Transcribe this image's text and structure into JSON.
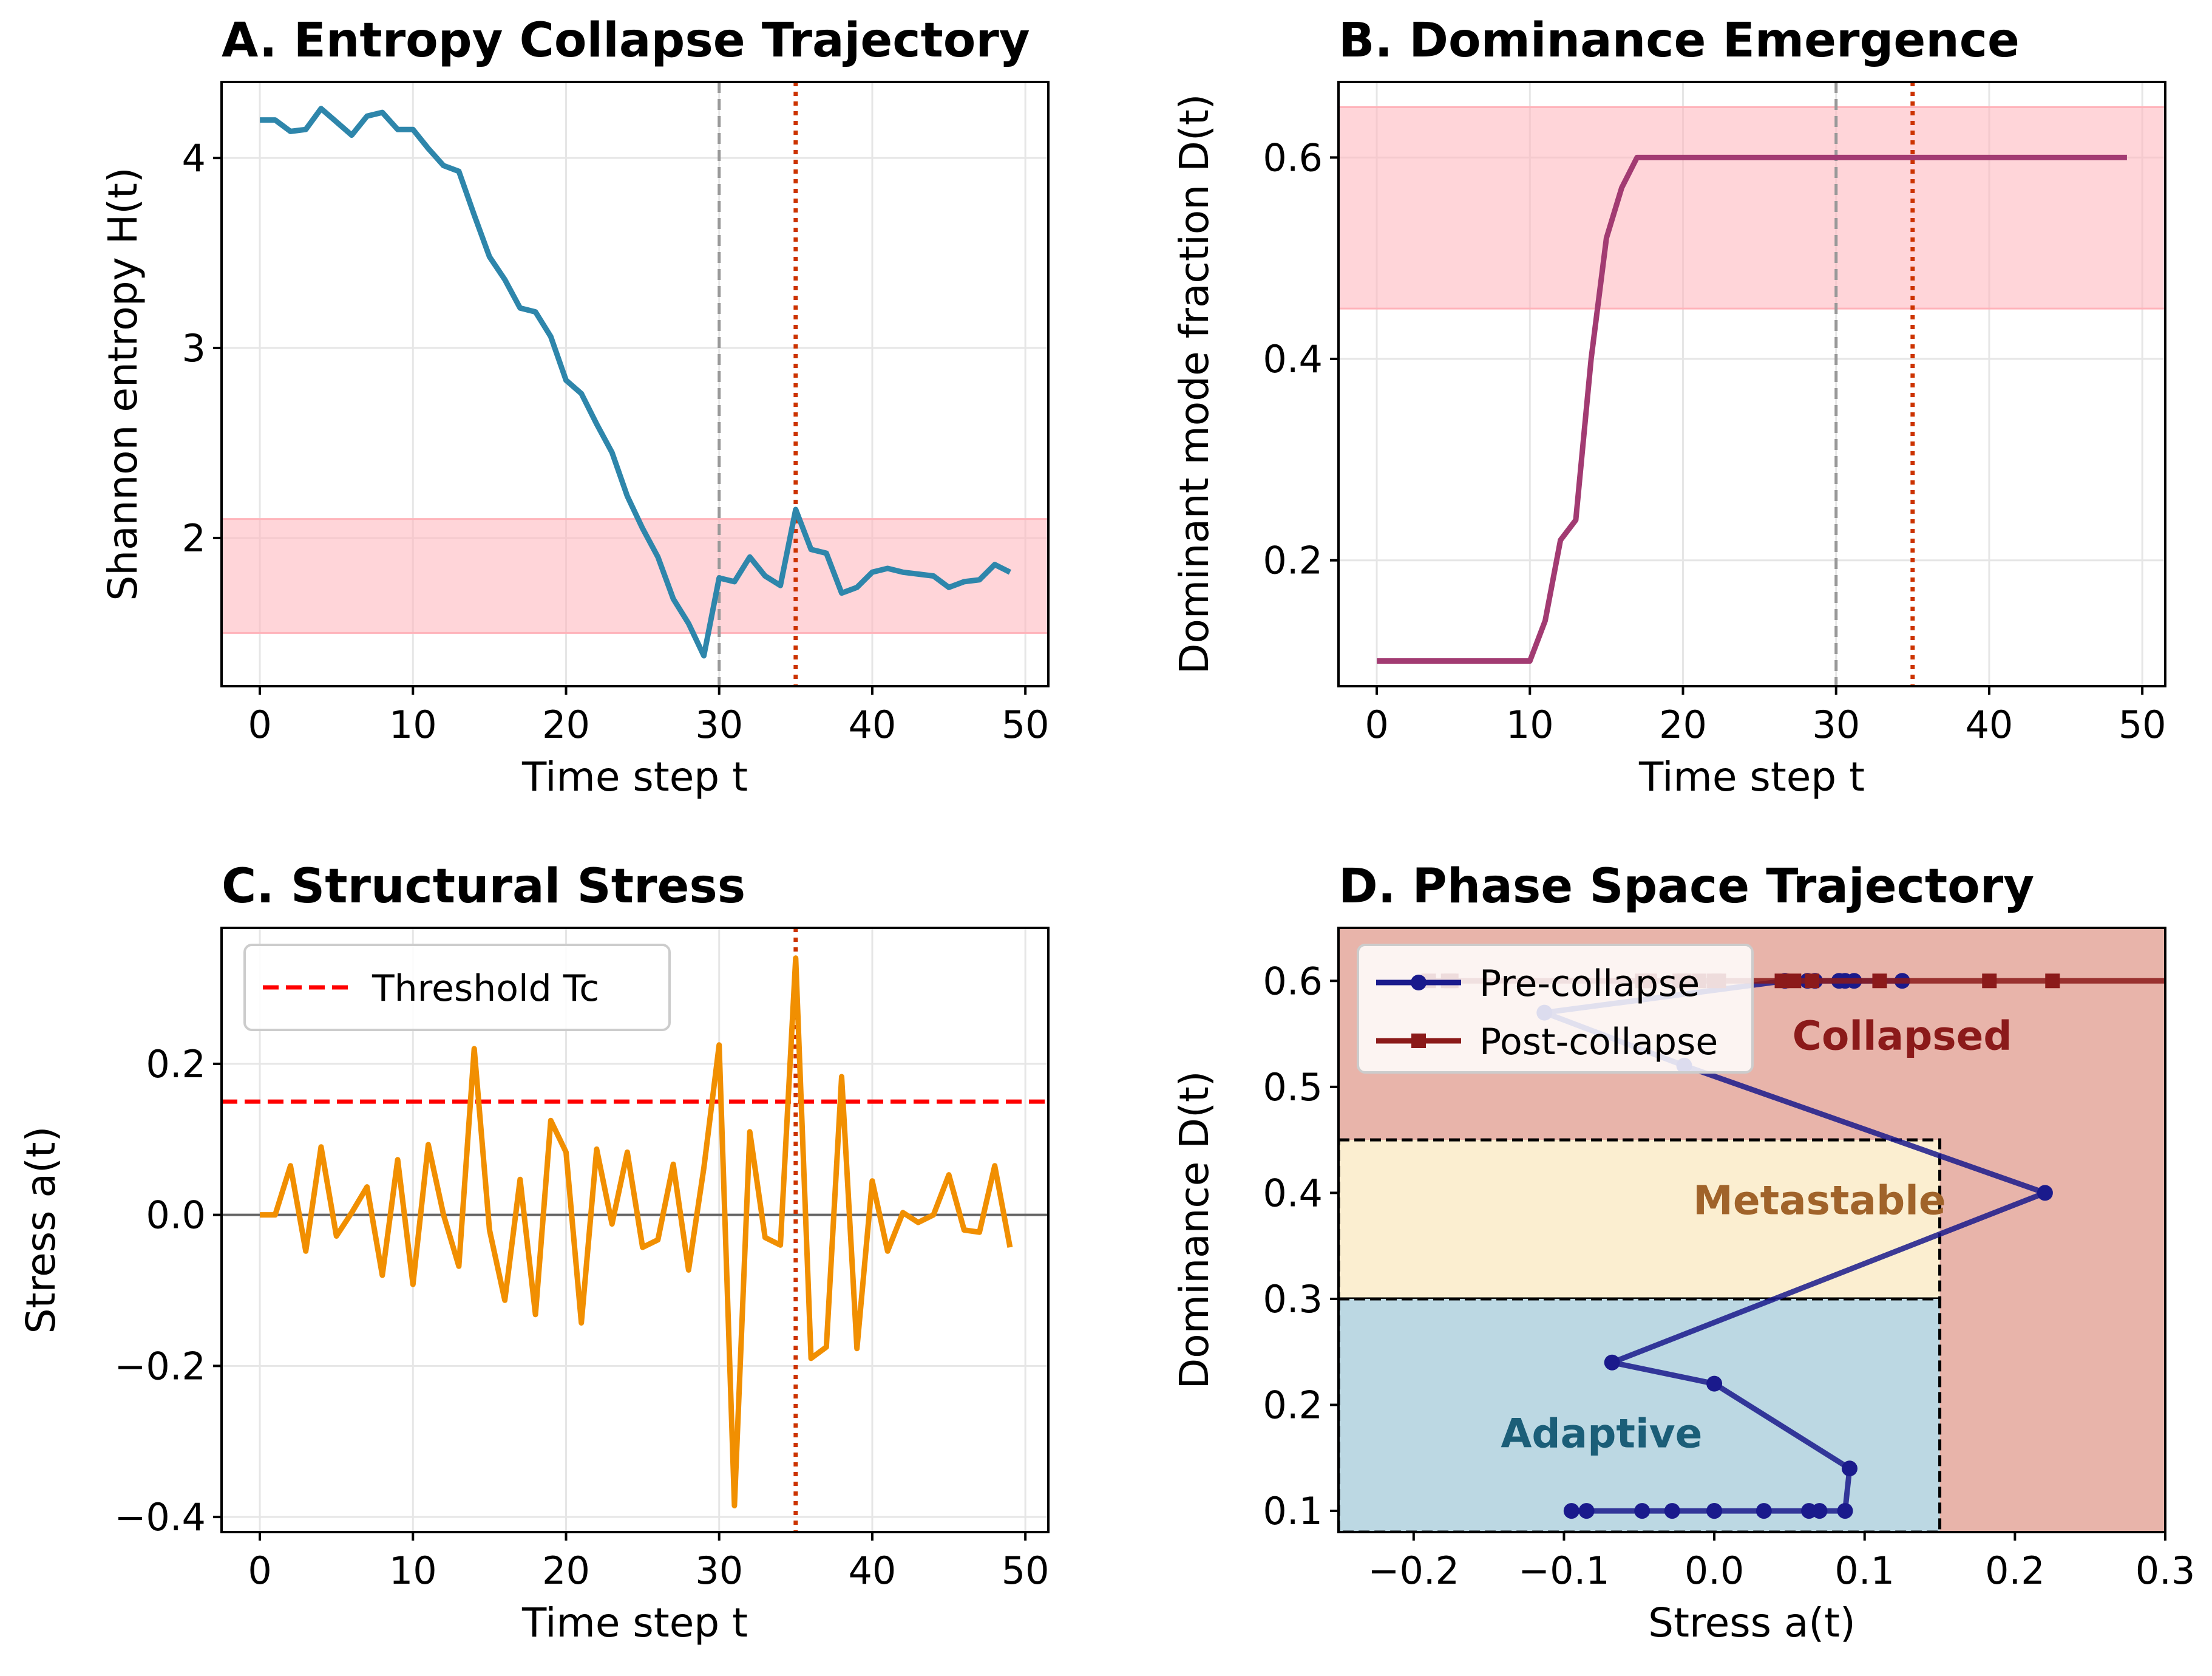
{
  "colors": {
    "entropy": "#2e86ab",
    "dominance": "#a23b72",
    "stress": "#f18f01",
    "pre": "#1a1a8c",
    "post": "#8b1a1a",
    "band": "#ffb3ba",
    "threshold": "#ff0000",
    "event": "#cc3300",
    "collapse_mark": "#999999",
    "collapsed_region": "#e8b4aa",
    "metastable_region": "#fbeed0",
    "adaptive_region": "#bcd8e3",
    "collapsed_text": "#8b1a1a",
    "metastable_text": "#a0632a",
    "adaptive_text": "#1b5e78"
  },
  "chart_data": [
    {
      "id": "A",
      "type": "line",
      "title": "A. Entropy Collapse Trajectory",
      "xlabel": "Time step t",
      "ylabel": "Shannon entropy H(t)",
      "xlim": [
        -2.5,
        51.5
      ],
      "ylim": [
        1.22,
        4.4
      ],
      "xticks": [
        0,
        10,
        20,
        30,
        40,
        50
      ],
      "yticks": [
        2,
        3,
        4
      ],
      "grid": true,
      "band": [
        1.5,
        2.1
      ],
      "vlines": [
        {
          "x": 30,
          "style": "dashed-gray"
        },
        {
          "x": 35,
          "style": "dotted-red"
        }
      ],
      "series": [
        {
          "x": [
            0,
            1,
            2,
            3,
            4,
            5,
            6,
            7,
            8,
            9,
            10,
            11,
            12,
            13,
            14,
            15,
            16,
            17,
            18,
            19,
            20,
            21,
            22,
            23,
            24,
            25,
            26,
            27,
            28,
            29,
            30,
            31,
            32,
            33,
            34,
            35,
            36,
            37,
            38,
            39,
            40,
            41,
            42,
            43,
            44,
            45,
            46,
            47,
            48,
            49
          ],
          "values": [
            4.2,
            4.2,
            4.14,
            4.15,
            4.26,
            4.19,
            4.12,
            4.22,
            4.24,
            4.15,
            4.15,
            4.05,
            3.96,
            3.93,
            3.7,
            3.48,
            3.36,
            3.21,
            3.19,
            3.06,
            2.83,
            2.76,
            2.6,
            2.45,
            2.22,
            2.05,
            1.9,
            1.68,
            1.55,
            1.38,
            1.79,
            1.77,
            1.9,
            1.8,
            1.75,
            2.15,
            1.94,
            1.92,
            1.71,
            1.74,
            1.82,
            1.84,
            1.82,
            1.81,
            1.8,
            1.74,
            1.77,
            1.78,
            1.86,
            1.82
          ]
        }
      ]
    },
    {
      "id": "B",
      "type": "line",
      "title": "B. Dominance Emergence",
      "xlabel": "Time step t",
      "ylabel": "Dominant mode fraction D(t)",
      "xlim": [
        -2.5,
        51.5
      ],
      "ylim": [
        0.075,
        0.675
      ],
      "xticks": [
        0,
        10,
        20,
        30,
        40,
        50
      ],
      "yticks": [
        0.2,
        0.4,
        0.6
      ],
      "grid": true,
      "band": [
        0.45,
        0.65
      ],
      "vlines": [
        {
          "x": 30,
          "style": "dashed-gray"
        },
        {
          "x": 35,
          "style": "dotted-red"
        }
      ],
      "series": [
        {
          "x": [
            0,
            10,
            11,
            12,
            13,
            14,
            15,
            16,
            17,
            49
          ],
          "values": [
            0.1,
            0.1,
            0.14,
            0.22,
            0.24,
            0.4,
            0.52,
            0.57,
            0.6,
            0.6
          ]
        }
      ]
    },
    {
      "id": "C",
      "type": "line",
      "title": "C. Structural Stress",
      "xlabel": "Time step t",
      "ylabel": "Stress a(t)",
      "xlim": [
        -2.5,
        51.5
      ],
      "ylim": [
        -0.42,
        0.38
      ],
      "xticks": [
        0,
        10,
        20,
        30,
        40,
        50
      ],
      "yticks": [
        -0.4,
        -0.2,
        0.0,
        0.2
      ],
      "ytick_labels": [
        "−0.4",
        "−0.2",
        "0.0",
        "0.2"
      ],
      "grid": true,
      "threshold": 0.15,
      "zero_line": 0,
      "vlines": [
        {
          "x": 35,
          "style": "dotted-red"
        }
      ],
      "legend": {
        "position": "top-left",
        "entries": [
          "Threshold Tc"
        ]
      },
      "series": [
        {
          "x": [
            0,
            1,
            2,
            3,
            4,
            5,
            6,
            7,
            8,
            9,
            10,
            11,
            12,
            13,
            14,
            15,
            16,
            17,
            18,
            19,
            20,
            21,
            22,
            23,
            24,
            25,
            26,
            27,
            28,
            29,
            30,
            31,
            32,
            33,
            34,
            35,
            36,
            37,
            38,
            39,
            40,
            41,
            42,
            43,
            44,
            45,
            46,
            47,
            48,
            49
          ],
          "values": [
            0.0,
            0.0,
            0.065,
            -0.048,
            0.09,
            -0.028,
            0.003,
            0.037,
            -0.08,
            0.073,
            -0.092,
            0.093,
            0.0,
            -0.068,
            0.22,
            -0.02,
            -0.113,
            0.047,
            -0.132,
            0.125,
            0.083,
            -0.143,
            0.087,
            -0.012,
            0.083,
            -0.043,
            -0.033,
            0.067,
            -0.073,
            0.062,
            0.225,
            -0.385,
            0.11,
            -0.03,
            -0.04,
            0.34,
            -0.19,
            -0.175,
            0.183,
            -0.177,
            0.045,
            -0.048,
            0.003,
            -0.01,
            0.0,
            0.053,
            -0.02,
            -0.023,
            0.065,
            -0.043
          ]
        }
      ]
    },
    {
      "id": "D",
      "type": "line",
      "title": "D. Phase Space Trajectory",
      "xlabel": "Stress a(t)",
      "ylabel": "Dominance D(t)",
      "xlim": [
        -0.25,
        0.3
      ],
      "ylim": [
        0.08,
        0.65
      ],
      "xticks": [
        -0.2,
        -0.1,
        0.0,
        0.1,
        0.2,
        0.3
      ],
      "xtick_labels": [
        "−0.2",
        "−0.1",
        "0.0",
        "0.1",
        "0.2",
        "0.3"
      ],
      "yticks": [
        0.1,
        0.2,
        0.3,
        0.4,
        0.5,
        0.6
      ],
      "grid": false,
      "regions": [
        {
          "name": "Collapsed",
          "dominance": [
            0.45,
            0.65
          ],
          "stress_max": 0.3
        },
        {
          "name": "Metastable",
          "dominance": [
            0.3,
            0.45
          ],
          "stress_max": 0.15
        },
        {
          "name": "Adaptive",
          "dominance": [
            0.08,
            0.3
          ],
          "stress_max": 0.15
        }
      ],
      "legend": {
        "position": "top-left",
        "entries": [
          "Pre-collapse",
          "Post-collapse"
        ]
      },
      "series": [
        {
          "name": "Pre-collapse",
          "marker": "circle",
          "x": [
            -0.095,
            -0.085,
            -0.048,
            -0.028,
            0.0,
            0.0,
            0.033,
            0.063,
            0.07,
            0.087,
            0.09,
            0.0,
            -0.068,
            0.22,
            -0.02,
            -0.113,
            0.047,
            0.083,
            0.087,
            0.067,
            0.062,
            0.093,
            0.125
          ],
          "values": [
            0.1,
            0.1,
            0.1,
            0.1,
            0.1,
            0.1,
            0.1,
            0.1,
            0.1,
            0.1,
            0.14,
            0.22,
            0.24,
            0.4,
            0.52,
            0.57,
            0.6,
            0.6,
            0.6,
            0.6,
            0.6,
            0.6,
            0.6
          ]
        },
        {
          "name": "Post-collapse",
          "marker": "square",
          "x": [
            0.34,
            -0.19,
            -0.175,
            0.183,
            -0.177,
            0.045,
            -0.048,
            0.003,
            -0.01,
            0.0,
            0.053,
            -0.02,
            -0.023,
            0.065,
            -0.043,
            0.11,
            0.225
          ],
          "values": [
            0.6,
            0.6,
            0.6,
            0.6,
            0.6,
            0.6,
            0.6,
            0.6,
            0.6,
            0.6,
            0.6,
            0.6,
            0.6,
            0.6,
            0.6,
            0.6,
            0.6
          ]
        }
      ]
    }
  ]
}
